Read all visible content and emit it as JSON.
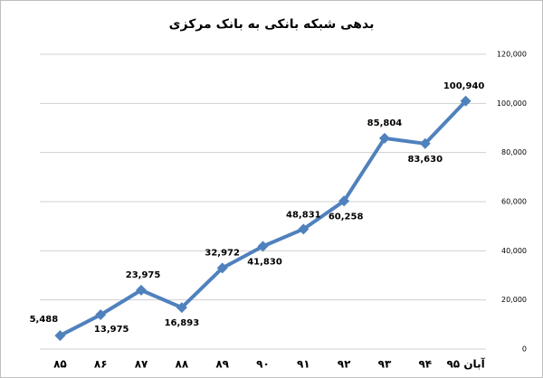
{
  "chart_data": {
    "type": "line",
    "title": "بدهی شبکه بانکی به بانک مرکزی",
    "categories": [
      "۸۵",
      "۸۶",
      "۸۷",
      "۸۸",
      "۸۹",
      "۹۰",
      "۹۱",
      "۹۲",
      "۹۳",
      "۹۴",
      "آبان ۹۵"
    ],
    "values": [
      5488,
      13975,
      23975,
      16893,
      32972,
      41830,
      48831,
      60258,
      85804,
      83630,
      100940
    ],
    "value_labels": [
      "5,488",
      "13,975",
      "23,975",
      "16,893",
      "32,972",
      "41,830",
      "48,831",
      "60,258",
      "85,804",
      "83,630",
      "100,940"
    ],
    "color": "#4f81bd",
    "ylim": [
      0,
      120000
    ],
    "yticks": [
      0,
      {
        "value": 20000,
        "label": "20,000"
      },
      {
        "value": 40000,
        "label": "40,000"
      },
      {
        "value": 60000,
        "label": "60,000"
      },
      {
        "value": 80000,
        "label": "80,000"
      },
      {
        "value": 100000,
        "label": "100,000"
      },
      {
        "value": 120000,
        "label": "120,000"
      }
    ],
    "grid": true
  }
}
